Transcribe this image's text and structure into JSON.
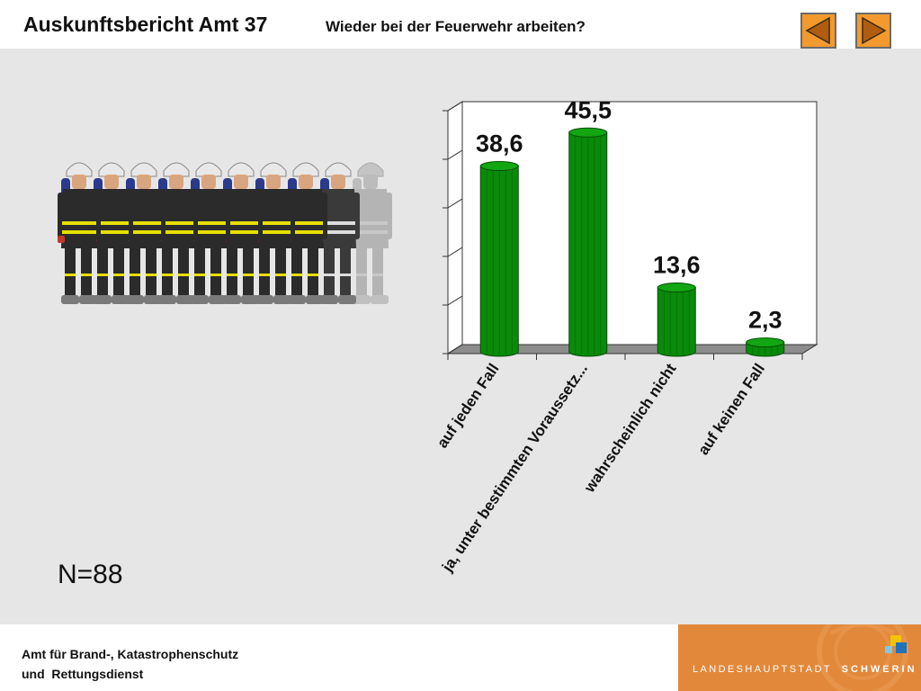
{
  "header": {
    "title": "Auskunftsbericht Amt 37",
    "subtitle": "Wieder bei der Feuerwehr arbeiten?"
  },
  "nav": {
    "prev_icon": "triangle-left-icon",
    "next_icon": "triangle-right-icon",
    "button_color": "#f29a2e"
  },
  "sample_size": "N=88",
  "footer": {
    "line1": "Amt für Brand-, Katastrophenschutz",
    "line2": "und  Rettungsdienst"
  },
  "brand": {
    "city_prefix": "LANDESHAUPTSTADT",
    "city_name": "SCHWERIN",
    "color": "#e2883a"
  },
  "illustration": {
    "icon": "firefighter-figures",
    "figures_total": 10,
    "figures_colored": 8
  },
  "chart_data": {
    "type": "bar",
    "title": "",
    "xlabel": "",
    "ylabel": "",
    "categories": [
      "auf jeden Fall",
      "ja, unter bestimmten Voraussetz...",
      "wahrscheinlich nicht",
      "auf keinen Fall"
    ],
    "values": [
      38.6,
      45.5,
      13.6,
      2.3
    ],
    "value_labels": [
      "38,6",
      "45,5",
      "13,6",
      "2,3"
    ],
    "ylim": [
      0,
      50
    ],
    "grid": false,
    "bar_color": "#0a8a0a",
    "style": "3d-cylinder"
  }
}
